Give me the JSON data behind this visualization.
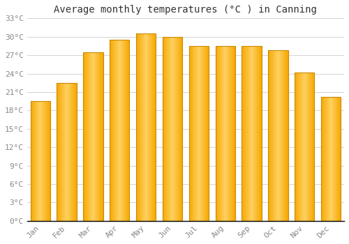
{
  "title": "Average monthly temperatures (°C ) in Canning",
  "months": [
    "Jan",
    "Feb",
    "Mar",
    "Apr",
    "May",
    "Jun",
    "Jul",
    "Aug",
    "Sep",
    "Oct",
    "Nov",
    "Dec"
  ],
  "values": [
    19.5,
    22.5,
    27.5,
    29.5,
    30.5,
    30.0,
    28.5,
    28.5,
    28.5,
    27.8,
    24.2,
    20.2
  ],
  "bar_color_left": "#F5A800",
  "bar_color_center": "#FFD060",
  "bar_color_right": "#F5A800",
  "bar_edge_color": "#CC8800",
  "ylim": [
    0,
    33
  ],
  "ytick_step": 3,
  "background_color": "#ffffff",
  "grid_color": "#cccccc",
  "title_fontsize": 10,
  "tick_fontsize": 8,
  "tick_color": "#888888",
  "title_color": "#333333",
  "bar_width": 0.75
}
